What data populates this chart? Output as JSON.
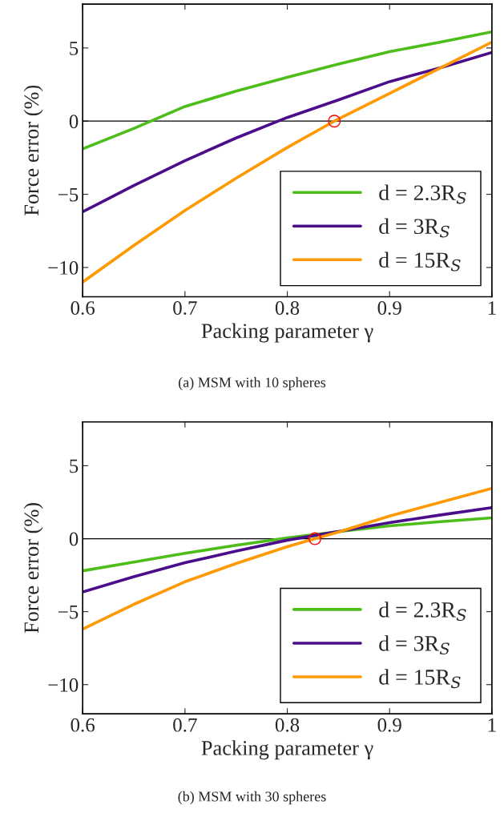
{
  "chart_data": [
    {
      "type": "line",
      "xlabel": "Packing parameter γ",
      "ylabel": "Force error (%)",
      "annotations": [
        "(a) MSM with 10 spheres"
      ],
      "xlim": [
        0.6,
        1
      ],
      "ylim": [
        -12,
        8
      ],
      "xticks": [
        0.6,
        0.7,
        0.8,
        0.9,
        1
      ],
      "yticks": [
        -10,
        -5,
        0,
        5
      ],
      "grid": false,
      "legend": "bottom right",
      "ref_lines": [
        {
          "axis": "y",
          "value": 0,
          "color": "#000000"
        }
      ],
      "series": [
        {
          "name": "d = 2.3R$_{S}$",
          "color": "#4dbd1a",
          "x": [
            0.6,
            0.65,
            0.7,
            0.75,
            0.8,
            0.85,
            0.9,
            0.95,
            1.0
          ],
          "values": [
            -1.9,
            -0.5,
            1.0,
            2.05,
            3.0,
            3.9,
            4.75,
            5.4,
            6.1
          ]
        },
        {
          "name": "d = 3R$_{S}$",
          "color": "#4b0d8a",
          "x": [
            0.6,
            0.65,
            0.7,
            0.75,
            0.8,
            0.85,
            0.9,
            0.95,
            1.0
          ],
          "values": [
            -6.2,
            -4.4,
            -2.7,
            -1.15,
            0.25,
            1.45,
            2.7,
            3.65,
            4.7
          ]
        },
        {
          "name": "d = 15R$_{S}$",
          "color": "#ff9900",
          "x": [
            0.6,
            0.65,
            0.7,
            0.75,
            0.8,
            0.846,
            0.9,
            0.95,
            1.0
          ],
          "values": [
            -11.0,
            -8.5,
            -6.1,
            -3.9,
            -1.8,
            0,
            1.9,
            3.65,
            5.4
          ]
        },
        {
          "type": "scatter",
          "marker": "circle",
          "color": "#ff0000",
          "x": [
            0.846
          ],
          "values": [
            0
          ]
        }
      ]
    },
    {
      "type": "line",
      "xlabel": "Packing parameter γ",
      "ylabel": "Force error (%)",
      "annotations": [
        "(b) MSM with 30 spheres"
      ],
      "xlim": [
        0.6,
        1
      ],
      "ylim": [
        -12,
        8
      ],
      "xticks": [
        0.6,
        0.7,
        0.8,
        0.9,
        1
      ],
      "yticks": [
        -10,
        -5,
        0,
        5
      ],
      "grid": false,
      "legend": "bottom right",
      "ref_lines": [
        {
          "axis": "y",
          "value": 0,
          "color": "#000000"
        }
      ],
      "series": [
        {
          "name": "d = 2.3R$_{S}$",
          "color": "#4dbd1a",
          "x": [
            0.6,
            0.65,
            0.7,
            0.75,
            0.8,
            0.85,
            0.9,
            0.95,
            1.0
          ],
          "values": [
            -2.2,
            -1.6,
            -1.0,
            -0.45,
            0.05,
            0.48,
            0.88,
            1.17,
            1.43
          ]
        },
        {
          "name": "d = 3R$_{S}$",
          "color": "#4b0d8a",
          "x": [
            0.6,
            0.65,
            0.7,
            0.75,
            0.8,
            0.85,
            0.9,
            0.95,
            1.0
          ],
          "values": [
            -3.65,
            -2.6,
            -1.65,
            -0.85,
            -0.1,
            0.5,
            1.1,
            1.63,
            2.13
          ]
        },
        {
          "name": "d = 15R$_{S}$",
          "color": "#ff9900",
          "x": [
            0.6,
            0.65,
            0.7,
            0.75,
            0.8,
            0.827,
            0.85,
            0.9,
            0.95,
            1.0
          ],
          "values": [
            -6.2,
            -4.5,
            -2.95,
            -1.7,
            -0.55,
            0,
            0.45,
            1.55,
            2.5,
            3.45
          ]
        },
        {
          "type": "scatter",
          "marker": "circle",
          "color": "#ff0000",
          "x": [
            0.827
          ],
          "values": [
            0
          ]
        }
      ]
    }
  ]
}
